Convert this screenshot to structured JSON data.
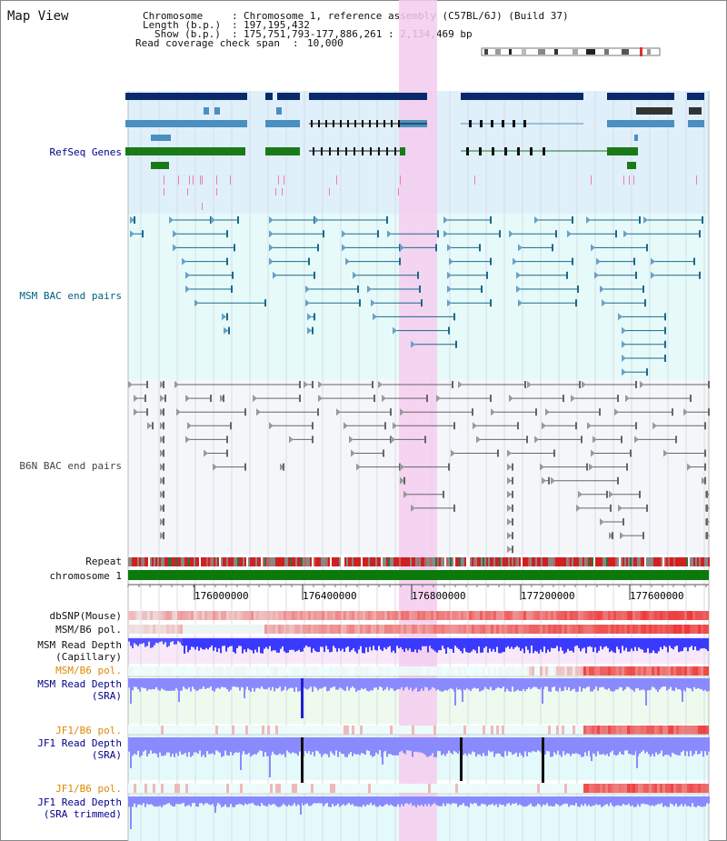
{
  "title": "Map View",
  "info": {
    "chromosome_key": "Chromosome",
    "chromosome_value": "Chromosome 1, reference assembly (C57BL/6J) (Build 37)",
    "length_key": "Length (b.p.)",
    "length_value": "197,195,432",
    "show_key": "Show (b.p.)",
    "show_value": "175,751,793-177,886,261 : 2,134,469 bp",
    "coverage_key": "Read coverage check span",
    "coverage_value": "10,000"
  },
  "tracks": {
    "refseq": "RefSeq Genes",
    "msm_bac": "MSM BAC end pairs",
    "b6n_bac": "B6N BAC end pairs",
    "repeat": "Repeat",
    "chromosome": "chromosome 1",
    "dbsnp": "dbSNP(Mouse)",
    "msm_b6_pol": "MSM/B6 pol.",
    "msm_depth_cap": "MSM Read Depth\n(Capillary)",
    "msm_b6_pol2": "MSM/B6 pol.",
    "msm_depth_sra": "MSM Read Depth\n(SRA)",
    "jf1_b6_pol": "JF1/B6 pol.",
    "jf1_depth_sra": "JF1 Read Depth\n(SRA)",
    "jf1_b6_pol2": "JF1/B6 pol.",
    "jf1_depth_trim": "JF1 Read Depth\n(SRA trimmed)"
  },
  "axis": {
    "ticks": [
      "176000000",
      "176400000",
      "176800000",
      "177200000",
      "177600000"
    ]
  },
  "colors": {
    "navy": "#0a2a6a",
    "refseq_blue": "#4a8fbf",
    "refseq_green": "#1a7a1a",
    "refseq_bg": "#dff0fb",
    "msm_bg": "#e6fafa",
    "b6n_bg": "#f4f6fa",
    "highlight": "#f5ccee",
    "label_blue": "#00008b",
    "label_teal": "#006080",
    "label_orange": "#e08800",
    "depth_blue": "#3a3aff",
    "depth_light": "#8a8aff",
    "pol_red": "#ee2222"
  },
  "icons": [
    "chromosome-ideogram-icon"
  ]
}
